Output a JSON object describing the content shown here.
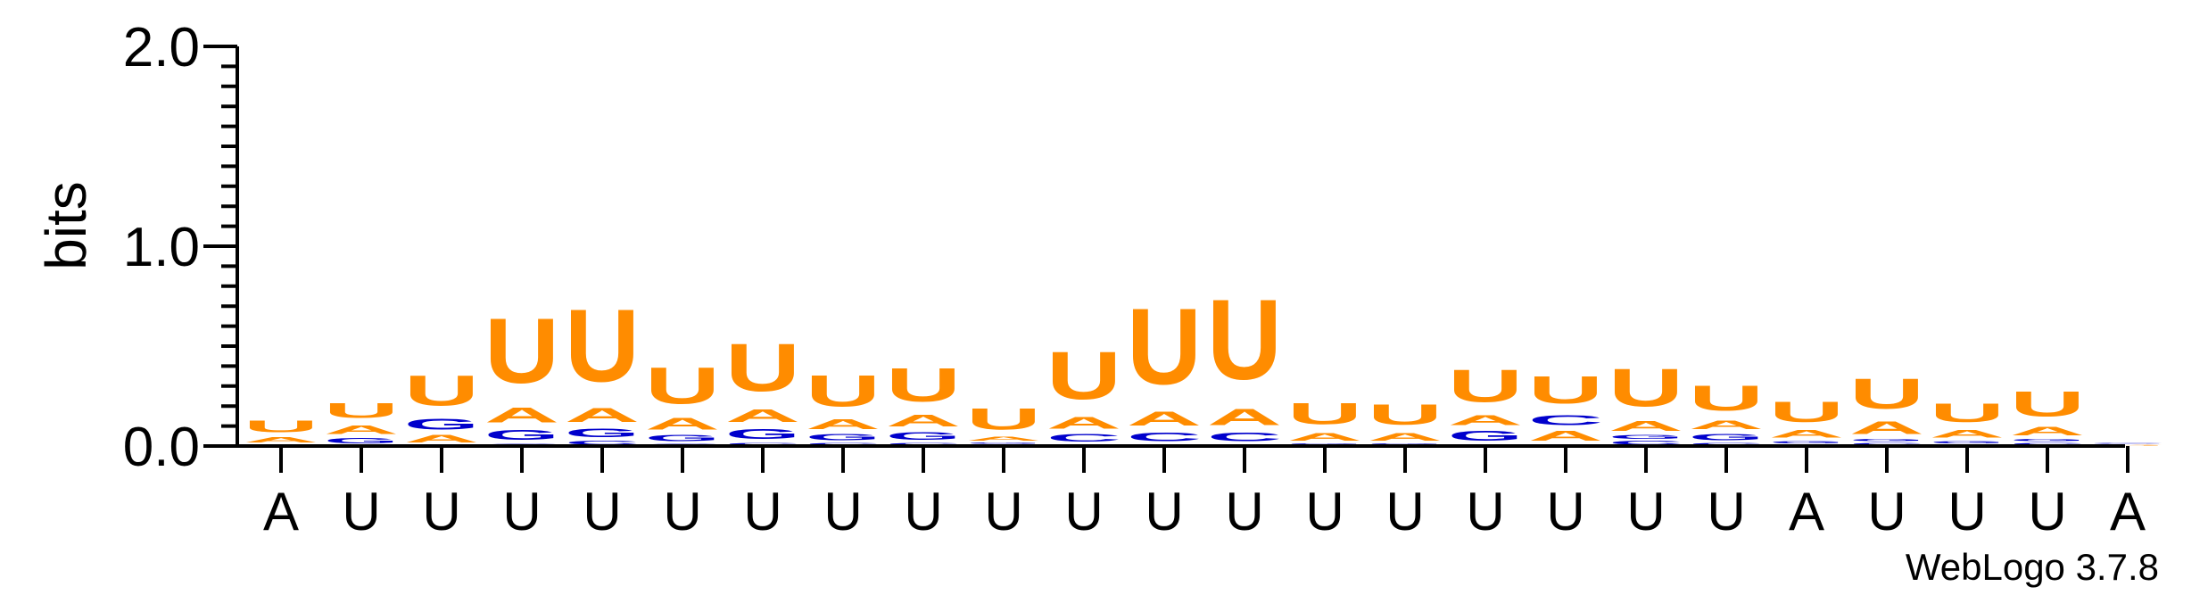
{
  "chart_data": {
    "type": "sequence-logo",
    "ylabel": "bits",
    "ylim": [
      0,
      2.0
    ],
    "y_ticks": [
      0.0,
      1.0,
      2.0
    ],
    "y_tick_labels": [
      "0.0",
      "1.0",
      "2.0"
    ],
    "x_tick_labels": [
      "A",
      "U",
      "U",
      "U",
      "U",
      "U",
      "U",
      "U",
      "U",
      "U",
      "U",
      "U",
      "U",
      "U",
      "U",
      "U",
      "U",
      "U",
      "U",
      "A",
      "U",
      "U",
      "U",
      "A"
    ],
    "colors": {
      "A": "#ff8c00",
      "U": "#ff8c00",
      "C": "#0000cc",
      "G": "#0000cc"
    },
    "columns": [
      [
        {
          "l": "C",
          "h": 0.005
        },
        {
          "l": "G",
          "h": 0.006
        },
        {
          "l": "A",
          "h": 0.04
        },
        {
          "l": "U",
          "h": 0.09
        }
      ],
      [
        {
          "l": "C",
          "h": 0.006
        },
        {
          "l": "G",
          "h": 0.04
        },
        {
          "l": "A",
          "h": 0.07
        },
        {
          "l": "U",
          "h": 0.12
        }
      ],
      [
        {
          "l": "C",
          "h": 0.006
        },
        {
          "l": "A",
          "h": 0.06
        },
        {
          "l": "G",
          "h": 0.09
        },
        {
          "l": "U",
          "h": 0.24
        }
      ],
      [
        {
          "l": "C",
          "h": 0.015
        },
        {
          "l": "G",
          "h": 0.08
        },
        {
          "l": "A",
          "h": 0.12
        },
        {
          "l": "U",
          "h": 0.52
        }
      ],
      [
        {
          "l": "C",
          "h": 0.03
        },
        {
          "l": "G",
          "h": 0.07
        },
        {
          "l": "A",
          "h": 0.11
        },
        {
          "l": "U",
          "h": 0.58
        }
      ],
      [
        {
          "l": "C",
          "h": 0.015
        },
        {
          "l": "G",
          "h": 0.05
        },
        {
          "l": "A",
          "h": 0.09
        },
        {
          "l": "U",
          "h": 0.29
        }
      ],
      [
        {
          "l": "C",
          "h": 0.02
        },
        {
          "l": "G",
          "h": 0.08
        },
        {
          "l": "A",
          "h": 0.1
        },
        {
          "l": "U",
          "h": 0.38
        }
      ],
      [
        {
          "l": "C",
          "h": 0.02
        },
        {
          "l": "G",
          "h": 0.05
        },
        {
          "l": "A",
          "h": 0.08
        },
        {
          "l": "U",
          "h": 0.25
        }
      ],
      [
        {
          "l": "C",
          "h": 0.02
        },
        {
          "l": "G",
          "h": 0.06
        },
        {
          "l": "A",
          "h": 0.09
        },
        {
          "l": "U",
          "h": 0.27
        }
      ],
      [
        {
          "l": "C",
          "h": 0.01
        },
        {
          "l": "G",
          "h": 0.01
        },
        {
          "l": "A",
          "h": 0.03
        },
        {
          "l": "U",
          "h": 0.17
        }
      ],
      [
        {
          "l": "G",
          "h": 0.01
        },
        {
          "l": "C",
          "h": 0.06
        },
        {
          "l": "A",
          "h": 0.09
        },
        {
          "l": "U",
          "h": 0.38
        }
      ],
      [
        {
          "l": "G",
          "h": 0.01
        },
        {
          "l": "C",
          "h": 0.07
        },
        {
          "l": "A",
          "h": 0.11
        },
        {
          "l": "U",
          "h": 0.61
        }
      ],
      [
        {
          "l": "G",
          "h": 0.01
        },
        {
          "l": "C",
          "h": 0.07
        },
        {
          "l": "A",
          "h": 0.13
        },
        {
          "l": "U",
          "h": 0.64
        }
      ],
      [
        {
          "l": "C",
          "h": 0.005
        },
        {
          "l": "G",
          "h": 0.01
        },
        {
          "l": "A",
          "h": 0.06
        },
        {
          "l": "U",
          "h": 0.17
        }
      ],
      [
        {
          "l": "C",
          "h": 0.005
        },
        {
          "l": "G",
          "h": 0.01
        },
        {
          "l": "A",
          "h": 0.06
        },
        {
          "l": "U",
          "h": 0.16
        }
      ],
      [
        {
          "l": "C",
          "h": 0.01
        },
        {
          "l": "G",
          "h": 0.08
        },
        {
          "l": "A",
          "h": 0.08
        },
        {
          "l": "U",
          "h": 0.26
        }
      ],
      [
        {
          "l": "G",
          "h": 0.01
        },
        {
          "l": "A",
          "h": 0.08
        },
        {
          "l": "C",
          "h": 0.08
        },
        {
          "l": "U",
          "h": 0.22
        }
      ],
      [
        {
          "l": "C",
          "h": 0.03
        },
        {
          "l": "G",
          "h": 0.03
        },
        {
          "l": "A",
          "h": 0.08
        },
        {
          "l": "U",
          "h": 0.3
        }
      ],
      [
        {
          "l": "C",
          "h": 0.02
        },
        {
          "l": "G",
          "h": 0.05
        },
        {
          "l": "A",
          "h": 0.07
        },
        {
          "l": "U",
          "h": 0.2
        }
      ],
      [
        {
          "l": "C",
          "h": 0.01
        },
        {
          "l": "G",
          "h": 0.02
        },
        {
          "l": "A",
          "h": 0.06
        },
        {
          "l": "U",
          "h": 0.16
        }
      ],
      [
        {
          "l": "C",
          "h": 0.02
        },
        {
          "l": "G",
          "h": 0.02
        },
        {
          "l": "A",
          "h": 0.1
        },
        {
          "l": "U",
          "h": 0.24
        }
      ],
      [
        {
          "l": "C",
          "h": 0.01
        },
        {
          "l": "G",
          "h": 0.02
        },
        {
          "l": "A",
          "h": 0.06
        },
        {
          "l": "U",
          "h": 0.15
        }
      ],
      [
        {
          "l": "C",
          "h": 0.02
        },
        {
          "l": "G",
          "h": 0.02
        },
        {
          "l": "A",
          "h": 0.07
        },
        {
          "l": "U",
          "h": 0.2
        }
      ],
      [
        {
          "l": "U",
          "h": 0.004
        },
        {
          "l": "A",
          "h": 0.005
        },
        {
          "l": "G",
          "h": 0.005
        },
        {
          "l": "C",
          "h": 0.006
        }
      ]
    ]
  },
  "footer": {
    "credit": "WebLogo 3.7.8"
  }
}
